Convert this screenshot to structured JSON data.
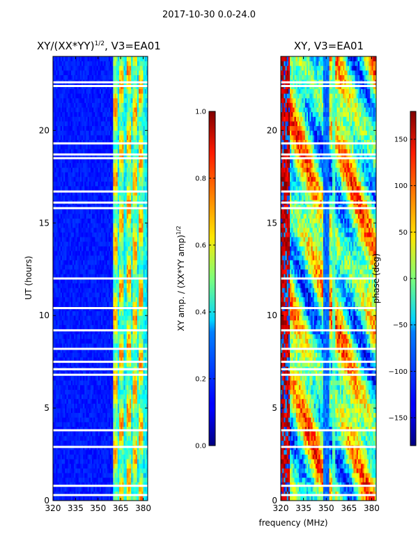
{
  "figure": {
    "suptitle": "2017-10-30 0.0-24.0"
  },
  "colormap": "jet",
  "chart_data": [
    {
      "type": "heatmap",
      "title_main": "XY/(XX*YY)",
      "title_exp": "1/2",
      "title_suffix": ", V3=EA01",
      "xlabel": "",
      "ylabel": "UT (hours)",
      "xlim": [
        320,
        383
      ],
      "ylim": [
        0,
        24
      ],
      "x_ticks": [
        320,
        335,
        350,
        365,
        380
      ],
      "y_ticks": [
        0,
        5,
        10,
        15,
        20
      ],
      "colorbar": {
        "label_main": "XY amp. / (XX*YY amp)",
        "label_exp": "1/2",
        "range": [
          0.0,
          1.0
        ],
        "ticks": [
          0.0,
          0.2,
          0.4,
          0.6,
          0.8,
          1.0
        ],
        "tick_labels": [
          "0.0",
          "0.2",
          "0.4",
          "0.6",
          "0.8",
          "1.0"
        ]
      },
      "gap_hours_utc": [
        0.3,
        0.8,
        2.9,
        3.8,
        6.8,
        7.1,
        7.5,
        8.2,
        9.2,
        10.4,
        12.0,
        15.8,
        16.1,
        16.7,
        18.5,
        18.7,
        19.3,
        22.4,
        22.6
      ],
      "features": {
        "background_level": 0.12,
        "band_start_mhz": 360,
        "peak_channels_mhz": [
          361.5,
          365.5,
          370.5,
          374.5,
          378.5
        ],
        "peak_level": 0.5
      }
    },
    {
      "type": "heatmap",
      "title_main": "XY, V3=EA01",
      "title_exp": "",
      "title_suffix": "",
      "xlabel": "frequency (MHz)",
      "ylabel": "",
      "xlim": [
        320,
        383
      ],
      "ylim": [
        0,
        24
      ],
      "x_ticks": [
        320,
        335,
        350,
        365,
        380
      ],
      "y_ticks": [
        0,
        5,
        10,
        15,
        20
      ],
      "colorbar": {
        "label_main": "phase (deg)",
        "label_exp": "",
        "range": [
          -180,
          180
        ],
        "ticks": [
          -150,
          -100,
          -50,
          0,
          50,
          100,
          150
        ],
        "tick_labels": [
          "−150",
          "−100",
          "−50",
          "0",
          "50",
          "100",
          "150"
        ]
      },
      "gap_hours_utc": [
        0.3,
        0.8,
        2.9,
        3.8,
        6.8,
        7.1,
        7.5,
        8.2,
        9.2,
        10.4,
        12.0,
        15.8,
        16.1,
        16.7,
        18.5,
        18.7,
        19.3,
        22.4,
        22.6
      ],
      "features": {
        "phase_trend": "stripes vary by frequency; low near 350 MHz, high near 320 MHz"
      }
    }
  ]
}
